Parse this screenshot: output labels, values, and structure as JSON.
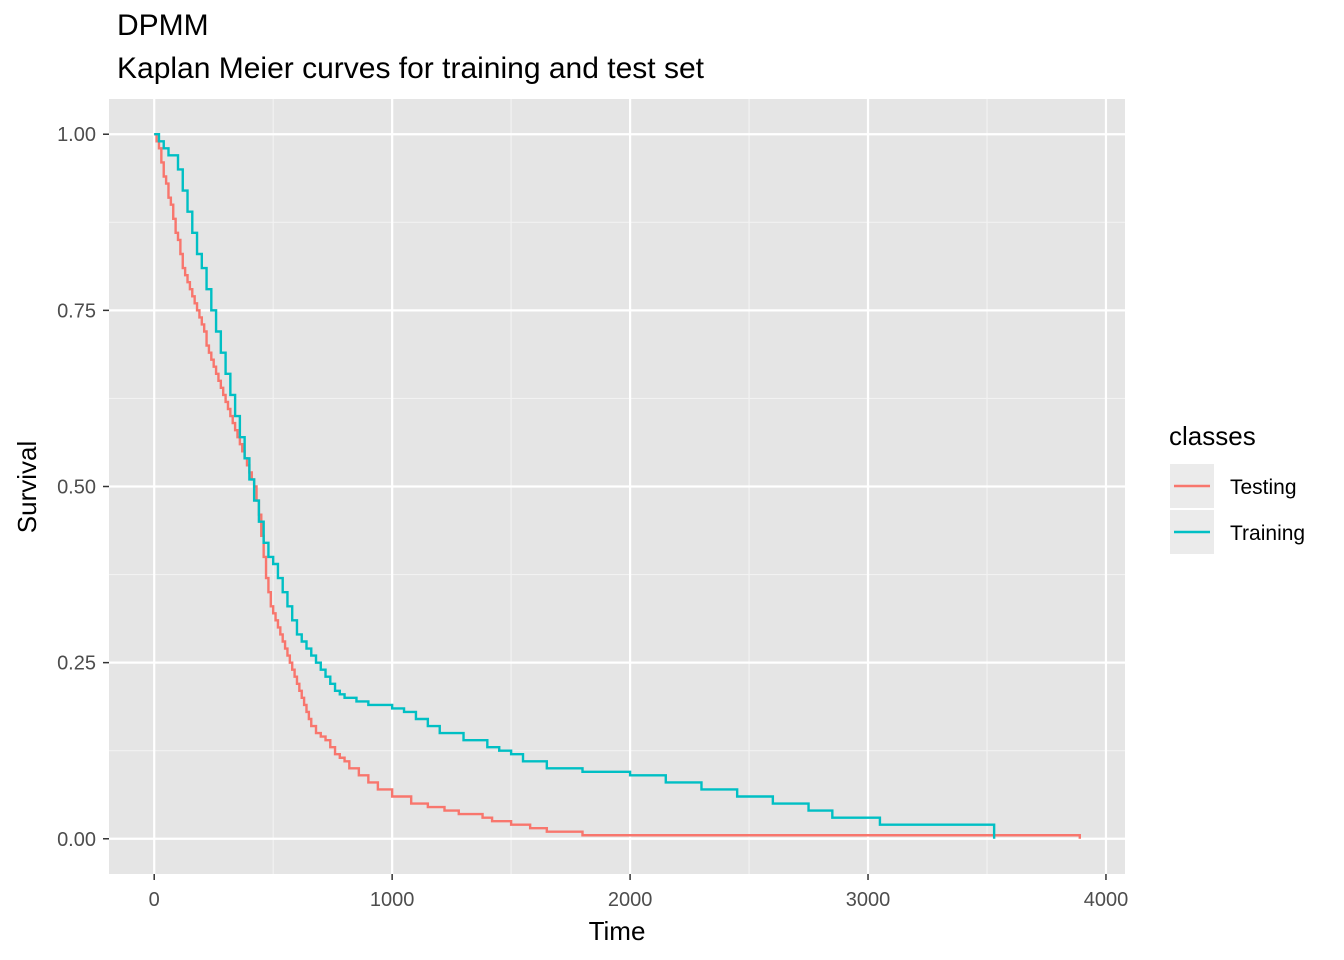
{
  "chart_data": {
    "type": "line",
    "step": true,
    "title": "DPMM",
    "subtitle": "Kaplan Meier curves for training and test set",
    "xlabel": "Time",
    "ylabel": "Survival",
    "xlim": [
      -190,
      4080
    ],
    "ylim": [
      -0.05,
      1.05
    ],
    "x_ticks": [
      0,
      1000,
      2000,
      3000,
      4000
    ],
    "x_tick_labels": [
      "0",
      "1000",
      "2000",
      "3000",
      "4000"
    ],
    "y_ticks": [
      0,
      0.25,
      0.5,
      0.75,
      1
    ],
    "y_tick_labels": [
      "0.00",
      "0.25",
      "0.50",
      "0.75",
      "1.00"
    ],
    "grid": true,
    "legend": {
      "title": "classes",
      "position": "right"
    },
    "series": [
      {
        "name": "Testing",
        "color": "#F8766D",
        "x": [
          0,
          10,
          20,
          30,
          40,
          50,
          60,
          70,
          80,
          90,
          100,
          110,
          120,
          130,
          140,
          150,
          160,
          170,
          180,
          190,
          200,
          210,
          220,
          230,
          240,
          250,
          260,
          270,
          280,
          290,
          300,
          310,
          320,
          330,
          340,
          350,
          360,
          370,
          380,
          390,
          400,
          410,
          420,
          430,
          440,
          450,
          460,
          470,
          480,
          490,
          500,
          510,
          520,
          530,
          540,
          550,
          560,
          570,
          580,
          590,
          600,
          610,
          620,
          630,
          640,
          650,
          660,
          680,
          700,
          720,
          740,
          760,
          780,
          800,
          820,
          860,
          900,
          940,
          1000,
          1080,
          1150,
          1220,
          1280,
          1380,
          1420,
          1500,
          1580,
          1650,
          1800,
          1990,
          2700,
          2890,
          3890
        ],
        "y": [
          1.0,
          0.99,
          0.98,
          0.96,
          0.94,
          0.93,
          0.91,
          0.9,
          0.88,
          0.86,
          0.85,
          0.83,
          0.81,
          0.8,
          0.79,
          0.78,
          0.77,
          0.76,
          0.75,
          0.74,
          0.73,
          0.72,
          0.7,
          0.69,
          0.68,
          0.67,
          0.66,
          0.65,
          0.64,
          0.63,
          0.62,
          0.61,
          0.6,
          0.59,
          0.58,
          0.57,
          0.56,
          0.55,
          0.54,
          0.53,
          0.52,
          0.51,
          0.5,
          0.48,
          0.46,
          0.43,
          0.4,
          0.37,
          0.35,
          0.33,
          0.32,
          0.31,
          0.3,
          0.29,
          0.28,
          0.27,
          0.26,
          0.25,
          0.24,
          0.23,
          0.22,
          0.21,
          0.2,
          0.19,
          0.18,
          0.17,
          0.16,
          0.15,
          0.145,
          0.14,
          0.13,
          0.12,
          0.115,
          0.11,
          0.1,
          0.09,
          0.08,
          0.07,
          0.06,
          0.05,
          0.045,
          0.04,
          0.035,
          0.03,
          0.025,
          0.02,
          0.015,
          0.01,
          0.005,
          0.005,
          0.005,
          0.005,
          0.0
        ],
        "end": 3890
      },
      {
        "name": "Training",
        "color": "#00BFC4",
        "x": [
          0,
          20,
          40,
          60,
          100,
          120,
          140,
          160,
          180,
          200,
          220,
          240,
          260,
          280,
          300,
          320,
          340,
          360,
          380,
          400,
          420,
          440,
          460,
          480,
          500,
          520,
          540,
          560,
          580,
          600,
          620,
          640,
          660,
          680,
          700,
          720,
          740,
          760,
          780,
          800,
          850,
          900,
          1000,
          1050,
          1100,
          1150,
          1200,
          1300,
          1400,
          1450,
          1500,
          1550,
          1650,
          1800,
          2000,
          2150,
          2300,
          2450,
          2600,
          2750,
          2850,
          3050,
          3530
        ],
        "y": [
          1.0,
          0.99,
          0.98,
          0.97,
          0.95,
          0.92,
          0.89,
          0.86,
          0.83,
          0.81,
          0.78,
          0.75,
          0.72,
          0.69,
          0.66,
          0.63,
          0.6,
          0.57,
          0.54,
          0.51,
          0.48,
          0.45,
          0.42,
          0.4,
          0.39,
          0.37,
          0.35,
          0.33,
          0.31,
          0.29,
          0.28,
          0.27,
          0.26,
          0.25,
          0.24,
          0.23,
          0.22,
          0.21,
          0.205,
          0.2,
          0.195,
          0.19,
          0.185,
          0.18,
          0.17,
          0.16,
          0.15,
          0.14,
          0.13,
          0.125,
          0.12,
          0.11,
          0.1,
          0.095,
          0.09,
          0.08,
          0.07,
          0.06,
          0.05,
          0.04,
          0.03,
          0.02,
          0.0
        ],
        "end": 3530
      }
    ]
  }
}
